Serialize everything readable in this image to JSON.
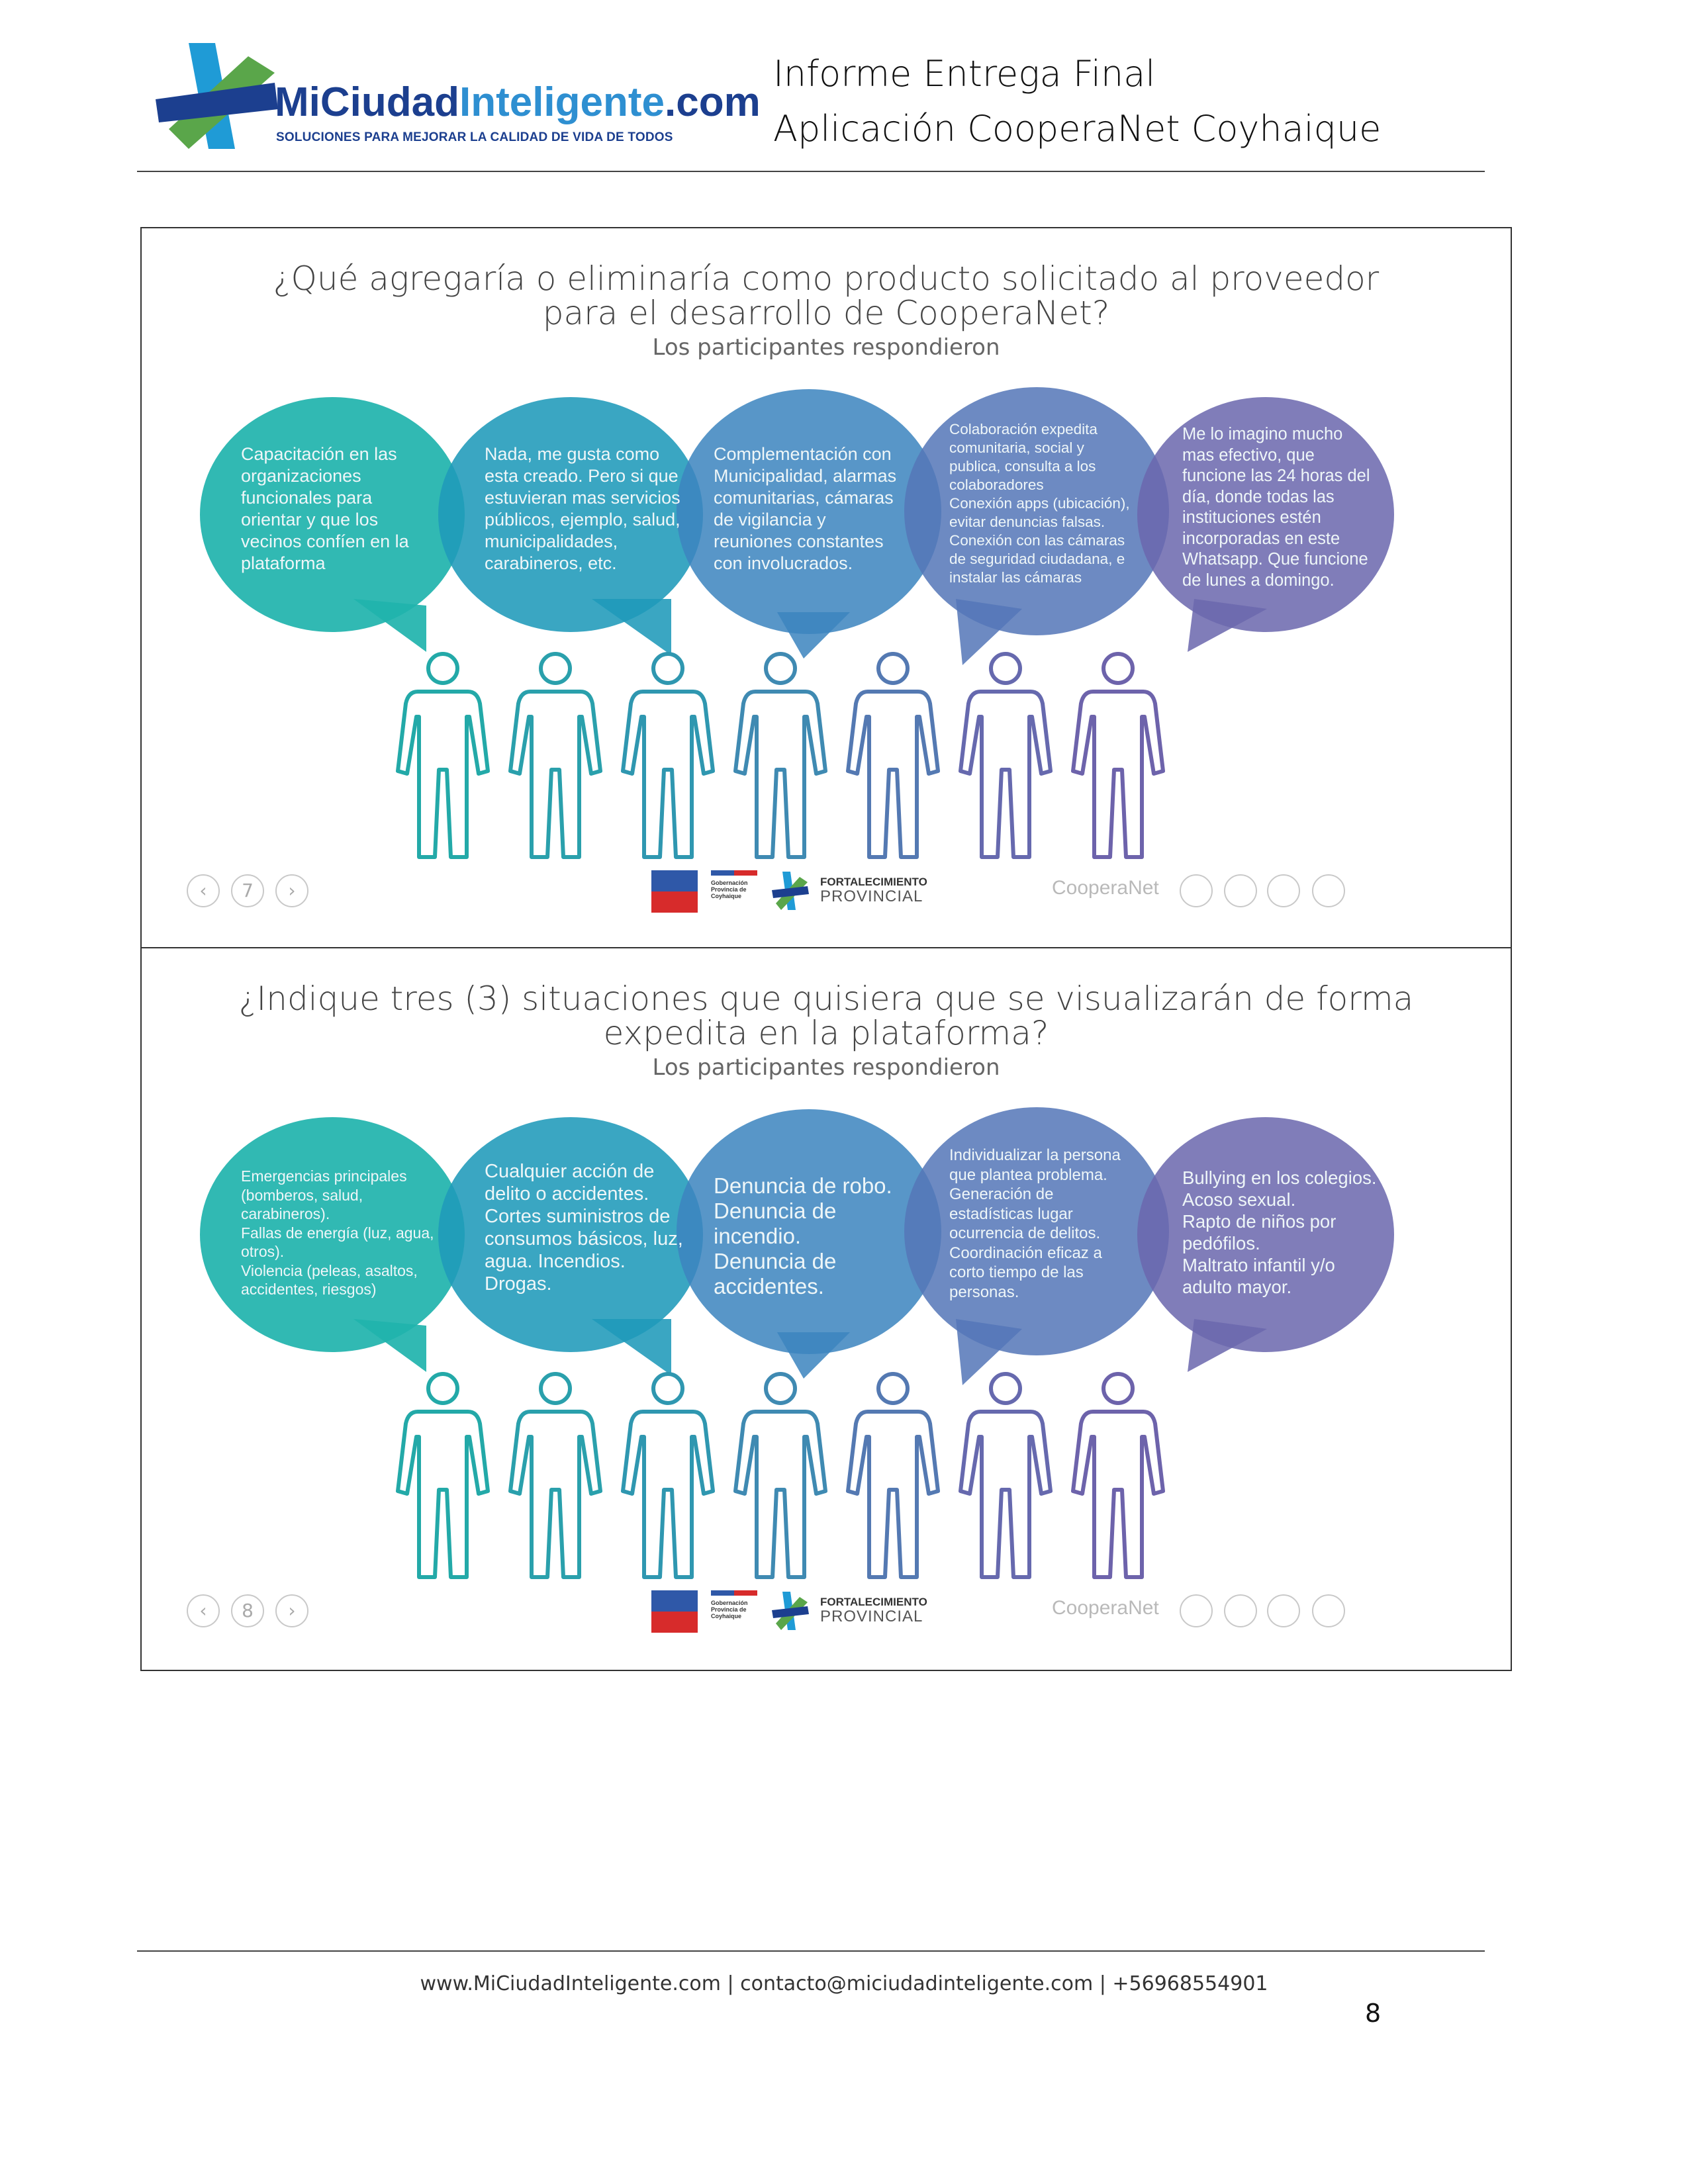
{
  "header": {
    "logo_name_part1": "MiCiudad",
    "logo_name_part2": "Inteligente",
    "logo_name_part3": ".com",
    "logo_tagline": "SOLUCIONES PARA MEJORAR LA CALIDAD DE VIDA DE TODOS",
    "title_line1": "Informe Entrega Final",
    "title_line2": "Aplicación CooperaNet Coyhaique"
  },
  "slides": [
    {
      "question_line1": "¿Qué agregaría o eliminaría como producto solicitado al proveedor",
      "question_line2": "para el desarrollo de CooperaNet?",
      "subtitle": "Los participantes respondieron",
      "bubbles": [
        "Capacitación en las\norganizaciones\nfuncionales para\norientar y que los\nvecinos confíen en la\nplataforma",
        "Nada, me gusta como\nesta creado. Pero si que\nestuvieran mas servicios\npúblicos, ejemplo, salud,\nmunicipalidades,\ncarabineros, etc.",
        "Complementación con\nMunicipalidad, alarmas\ncomunitarias, cámaras\nde vigilancia y\nreuniones constantes\ncon involucrados.",
        "Colaboración expedita\ncomunitaria, social y\npublica, consulta a los\ncolaboradores\nConexión apps (ubicación),\nevitar denuncias falsas.\nConexión con las cámaras\nde seguridad ciudadana, e\ninstalar las cámaras",
        "Me lo imagino mucho\nmas efectivo, que\nfuncione las 24 horas del\ndía, donde todas las\ninstituciones estén\nincorporadas en este\nWhatsapp. Que funcione\nde lunes a domingo."
      ],
      "page": "7",
      "brand": "CooperaNet"
    },
    {
      "question_line1": "¿Indique tres (3) situaciones que quisiera que se visualizarán de forma",
      "question_line2": "expedita en la plataforma?",
      "subtitle": "Los participantes respondieron",
      "bubbles": [
        "Emergencias principales\n(bomberos, salud,\ncarabineros).\nFallas de energía (luz, agua,\notros).\nViolencia (peleas, asaltos,\naccidentes, riesgos)",
        "Cualquier acción de\ndelito o accidentes.\nCortes suministros de\nconsumos básicos, luz,\nagua. Incendios.\nDrogas.",
        "Denuncia de robo.\nDenuncia de\nincendio.\nDenuncia de\naccidentes.",
        "Individualizar la persona\nque plantea problema.\nGeneración de\nestadísticas lugar\nocurrencia de delitos.\nCoordinación eficaz a\ncorto tiempo de las\npersonas.",
        "Bullying en los colegios.\nAcoso sexual.\nRapto de niños por\npedófilos.\nMaltrato infantil y/o\nadulto mayor."
      ],
      "page": "8",
      "brand": "CooperaNet"
    }
  ],
  "sponsors": {
    "gov_label": "Gobernación\nProvincia de\nCoyhaique",
    "program_title1": "FORTALECIMIENTO",
    "program_title2": "PROVINCIAL"
  },
  "colors": {
    "bubble1": "#1fb3ad",
    "bubble2": "#1f9ab9",
    "bubble3": "#3d85bf",
    "bubble4": "#5577b8",
    "bubble5": "#6b68ad",
    "people": [
      "#23a9a8",
      "#2aa0ac",
      "#2f97b0",
      "#3f8ab2",
      "#5479b2",
      "#6669ae",
      "#6d63ab"
    ]
  },
  "footer": {
    "text": "www.MiCiudadInteligente.com | contacto@miciudadinteligente.com | +56968554901",
    "page_number": "8"
  }
}
